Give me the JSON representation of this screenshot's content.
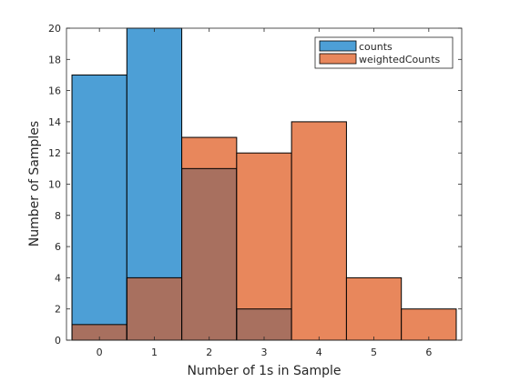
{
  "chart_data": {
    "type": "bar",
    "xlabel": "Number of 1s in Sample",
    "ylabel": "Number of Samples",
    "xlim": [
      -0.6,
      6.6
    ],
    "ylim": [
      0,
      20
    ],
    "xticks": [
      "0",
      "1",
      "2",
      "3",
      "4",
      "5",
      "6"
    ],
    "yticks": [
      "0",
      "2",
      "4",
      "6",
      "8",
      "10",
      "12",
      "14",
      "16",
      "18",
      "20"
    ],
    "categories": [
      0,
      1,
      2,
      3,
      4,
      5,
      6
    ],
    "series": [
      {
        "name": "counts",
        "values": [
          17,
          20,
          11,
          2,
          0,
          0,
          0
        ],
        "color": "#4d9fd6"
      },
      {
        "name": "weightedCounts",
        "values": [
          1,
          4,
          13,
          12,
          14,
          4,
          2
        ],
        "color": "#e8875c"
      }
    ],
    "overlap_color": "#a8705f",
    "legend_placement": "top-right",
    "grid": false
  }
}
